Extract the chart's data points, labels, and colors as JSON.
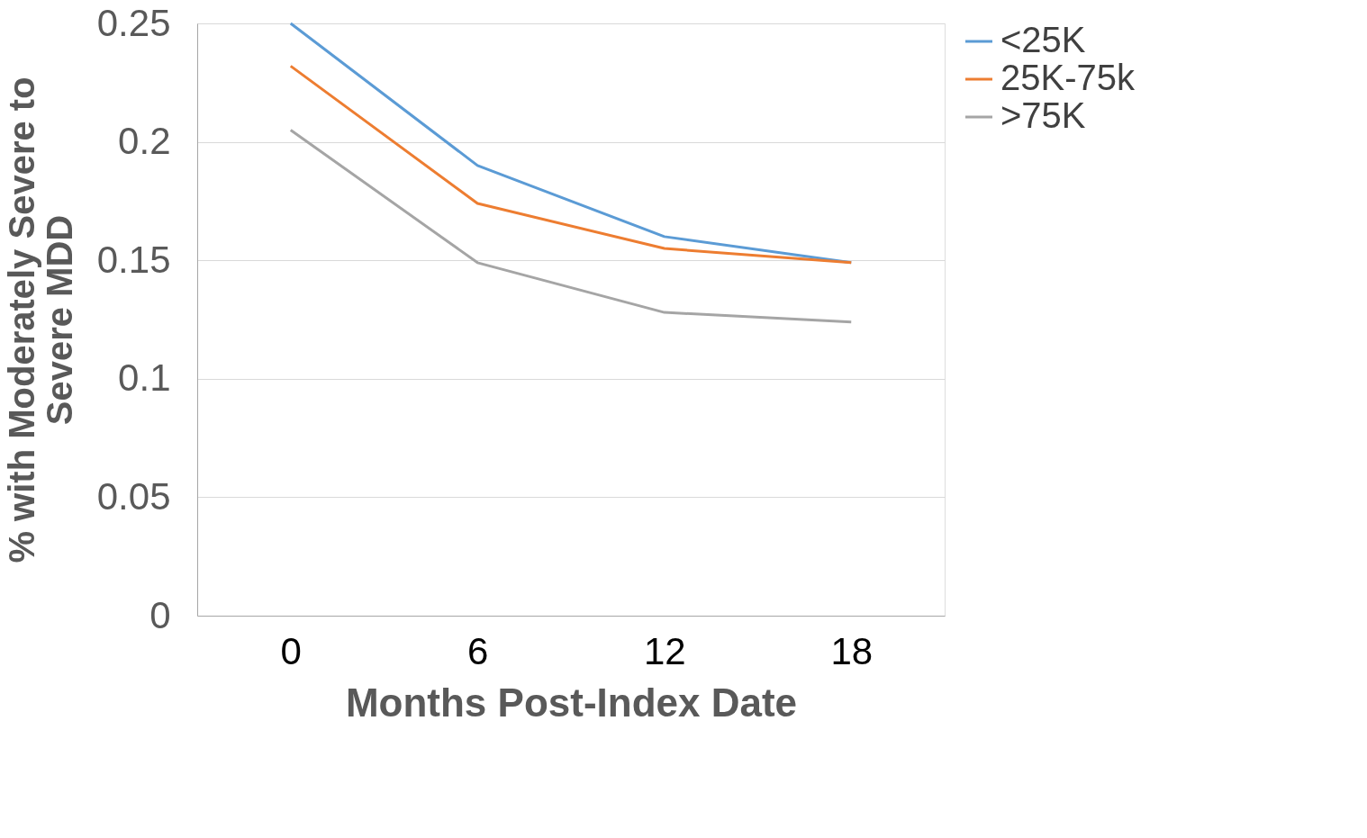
{
  "chart_data": {
    "type": "line",
    "xlabel": "Months Post-Index Date",
    "ylabel": "% with Moderately Severe to Severe MDD",
    "categories": [
      "0",
      "6",
      "12",
      "18"
    ],
    "series": [
      {
        "name": "<25K",
        "color": "#5b9bd5",
        "values": [
          0.25,
          0.19,
          0.16,
          0.149
        ]
      },
      {
        "name": "25K-75k",
        "color": "#ed7d31",
        "values": [
          0.232,
          0.174,
          0.155,
          0.149
        ]
      },
      {
        "name": ">75K",
        "color": "#a5a5a5",
        "values": [
          0.205,
          0.149,
          0.128,
          0.124
        ]
      }
    ],
    "ylim": [
      0,
      0.25
    ],
    "yticks": [
      0,
      0.05,
      0.1,
      0.15,
      0.2,
      0.25
    ],
    "grid": "y",
    "legend": "right",
    "marker": "none",
    "line_style": "solid"
  }
}
